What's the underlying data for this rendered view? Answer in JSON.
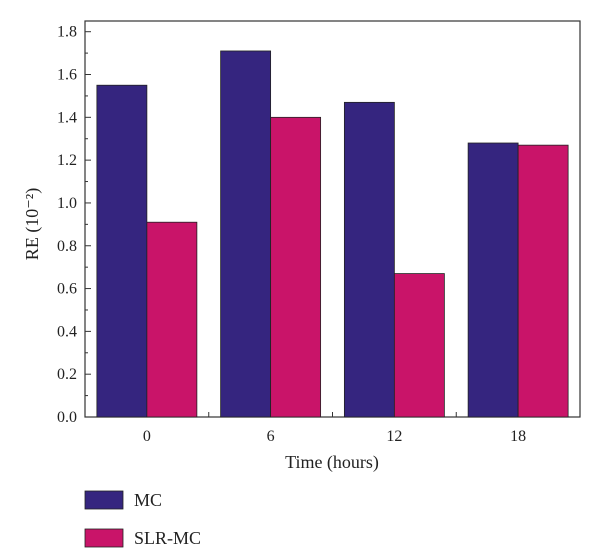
{
  "chart_data": {
    "type": "bar",
    "xlabel": "Time (hours)",
    "ylabel": "RE (10⁻²)",
    "categories": [
      "0",
      "6",
      "12",
      "18"
    ],
    "series": [
      {
        "name": "MC",
        "values": [
          1.55,
          1.71,
          1.47,
          1.28
        ],
        "color": "#35257f"
      },
      {
        "name": "SLR-MC",
        "values": [
          0.91,
          1.4,
          0.67,
          1.27
        ],
        "color": "#c91469"
      }
    ],
    "ylim": [
      0.0,
      1.85
    ],
    "yticks": [
      "0.0",
      "0.2",
      "0.4",
      "0.6",
      "0.8",
      "1.0",
      "1.2",
      "1.4",
      "1.6",
      "1.8"
    ],
    "grid": false,
    "legend_position": "bottom-left"
  }
}
